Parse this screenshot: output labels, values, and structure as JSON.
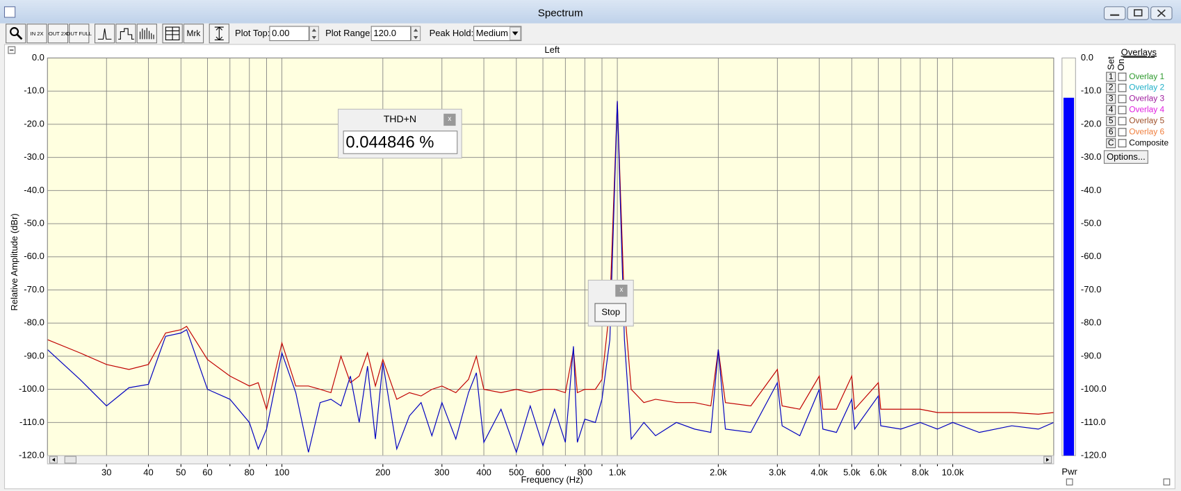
{
  "window": {
    "title": "Spectrum"
  },
  "toolbar": {
    "buttons": [
      "IN 2X",
      "OUT 2X",
      "OUT FULL",
      "Mrk"
    ],
    "plot_top": {
      "label": "Plot Top:",
      "value": "0.00"
    },
    "plot_range": {
      "label": "Plot Range:",
      "value": "120.0"
    },
    "peak_hold": {
      "label": "Peak Hold:",
      "value": "Medium"
    }
  },
  "chart_data": {
    "type": "line",
    "title": "Left",
    "x_label": "Frequency (Hz)",
    "y_label": "Relative Amplitude (dBr)",
    "log_x": true,
    "grid": true,
    "background": "#ffffe0",
    "xlim": [
      20,
      20000
    ],
    "xticks": [
      30,
      40,
      50,
      60,
      80,
      100,
      200,
      300,
      400,
      500,
      600,
      800,
      {
        "value": 1000,
        "label": "1.0k"
      },
      {
        "value": 2000,
        "label": "2.0k"
      },
      {
        "value": 3000,
        "label": "3.0k"
      },
      {
        "value": 4000,
        "label": "4.0k"
      },
      {
        "value": 5000,
        "label": "5.0k"
      },
      {
        "value": 6000,
        "label": "6.0k"
      },
      {
        "value": 8000,
        "label": "8.0k"
      },
      {
        "value": 10000,
        "label": "10.0k"
      }
    ],
    "minor_xticks": [
      70,
      90,
      700,
      900,
      7000,
      9000
    ],
    "ylim": [
      -120,
      0
    ],
    "yticks": [
      {
        "value": 0,
        "label": "0.0"
      },
      {
        "value": -10,
        "label": "-10.0"
      },
      {
        "value": -20,
        "label": "-20.0"
      },
      {
        "value": -30,
        "label": "-30.0"
      },
      {
        "value": -40,
        "label": "-40.0"
      },
      {
        "value": -50,
        "label": "-50.0"
      },
      {
        "value": -60,
        "label": "-60.0"
      },
      {
        "value": -70,
        "label": "-70.0"
      },
      {
        "value": -80,
        "label": "-80.0"
      },
      {
        "value": -90,
        "label": "-90.0"
      },
      {
        "value": -100,
        "label": "-100.0"
      },
      {
        "value": -110,
        "label": "-110.0"
      },
      {
        "value": -120,
        "label": "-120.0"
      }
    ],
    "x": [
      20,
      25,
      30,
      35,
      40,
      45,
      50,
      52,
      60,
      70,
      80,
      85,
      90,
      100,
      110,
      120,
      130,
      140,
      150,
      160,
      170,
      180,
      190,
      200,
      220,
      240,
      260,
      280,
      300,
      330,
      360,
      380,
      400,
      450,
      500,
      550,
      600,
      650,
      700,
      740,
      760,
      800,
      860,
      900,
      950,
      1000,
      1050,
      1100,
      1200,
      1300,
      1500,
      1700,
      1900,
      2000,
      2100,
      2500,
      3000,
      3100,
      3500,
      4000,
      4100,
      4500,
      5000,
      5100,
      6000,
      6100,
      7000,
      8000,
      9000,
      10000,
      12000,
      15000,
      18000,
      20000
    ],
    "series": [
      {
        "color": "#c00000",
        "values": [
          -85,
          -89,
          -92.5,
          -94,
          -92.5,
          -83,
          -82,
          -81,
          -91,
          -96,
          -99,
          -98,
          -106,
          -86,
          -99,
          -99,
          -100,
          -101,
          -90,
          -98,
          -96,
          -89,
          -99,
          -91,
          -103,
          -101,
          -102,
          -100,
          -99,
          -101,
          -97,
          -90,
          -100,
          -101,
          -100,
          -101,
          -100,
          -100,
          -101,
          -88,
          -101,
          -100,
          -100,
          -97,
          -75,
          -13,
          -75,
          -100,
          -104,
          -103,
          -104,
          -104,
          -105,
          -88,
          -104,
          -105,
          -94,
          -105,
          -106,
          -96,
          -106,
          -106,
          -96,
          -106,
          -98,
          -106,
          -106,
          -106,
          -107,
          -107,
          -107,
          -107,
          -107.5,
          -107
        ]
      },
      {
        "color": "#0000c0",
        "values": [
          -88,
          -97,
          -105,
          -99.5,
          -98.5,
          -84,
          -83,
          -82,
          -100,
          -103,
          -110,
          -118,
          -112,
          -89,
          -101,
          -119,
          -104,
          -103,
          -105,
          -96,
          -110,
          -93,
          -115,
          -92,
          -118,
          -108,
          -104,
          -114,
          -104,
          -115,
          -101,
          -95,
          -116,
          -106,
          -119,
          -105,
          -117,
          -106,
          -116,
          -87,
          -116,
          -109,
          -110,
          -103,
          -85,
          -13,
          -85,
          -115,
          -110,
          -114,
          -110,
          -112,
          -113,
          -88,
          -112,
          -113,
          -98,
          -111,
          -114,
          -100,
          -112,
          -113,
          -103,
          -112,
          -102,
          -111,
          -112,
          -110,
          -112,
          -110,
          -113,
          -111,
          -112,
          -110
        ]
      }
    ],
    "meter": {
      "label": "Pwr",
      "value": -12,
      "color": "#0000ff"
    }
  },
  "overlays": {
    "title": "Overlays",
    "set_header": "Set",
    "on_header": "On",
    "items": [
      {
        "key": "1",
        "label": "Overlay 1",
        "color": "#2e9a2e"
      },
      {
        "key": "2",
        "label": "Overlay 2",
        "color": "#20b0c8"
      },
      {
        "key": "3",
        "label": "Overlay 3",
        "color": "#a020a0"
      },
      {
        "key": "4",
        "label": "Overlay 4",
        "color": "#e020e0"
      },
      {
        "key": "5",
        "label": "Overlay 5",
        "color": "#a0522d"
      },
      {
        "key": "6",
        "label": "Overlay 6",
        "color": "#f08040"
      },
      {
        "key": "C",
        "label": "Composite",
        "color": "#000000"
      }
    ],
    "options_button": "Options..."
  },
  "thdn_panel": {
    "title": "THD+N",
    "value": "0.044846 %"
  },
  "stop_panel": {
    "button": "Stop"
  },
  "close_label": "x"
}
